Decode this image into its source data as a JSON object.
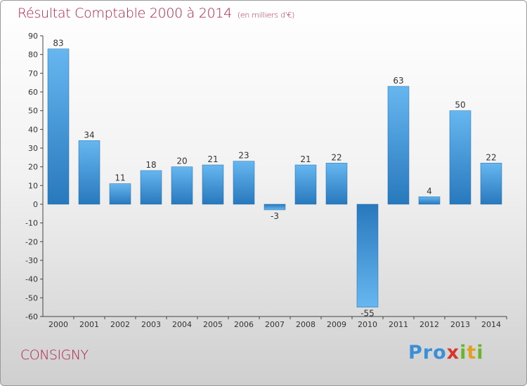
{
  "header": {
    "title": "Résultat Comptable 2000 à 2014",
    "unit": "(en milliers d'€)"
  },
  "commune": "CONSIGNY",
  "logo": {
    "p1": "Pro",
    "x": "x",
    "i1": "i",
    "t": "t",
    "i2": "i"
  },
  "colors": {
    "title": "#b01f47",
    "bar_light": "#5fb1ec",
    "bar_dark": "#2a7cc0"
  },
  "chart_data": {
    "type": "bar",
    "title": "Résultat Comptable 2000 à 2014",
    "ylabel": "en milliers d'€",
    "xlabel": "",
    "categories": [
      "2000",
      "2001",
      "2002",
      "2003",
      "2004",
      "2005",
      "2006",
      "2007",
      "2008",
      "2009",
      "2010",
      "2011",
      "2012",
      "2013",
      "2014"
    ],
    "values": [
      83,
      34,
      11,
      18,
      20,
      21,
      23,
      -3,
      21,
      22,
      -55,
      63,
      4,
      50,
      22
    ],
    "ylim": [
      -60,
      90
    ],
    "yticks": [
      90,
      80,
      70,
      60,
      50,
      40,
      30,
      20,
      10,
      0,
      -10,
      -20,
      -30,
      -40,
      -50,
      -60
    ],
    "grid": false
  }
}
